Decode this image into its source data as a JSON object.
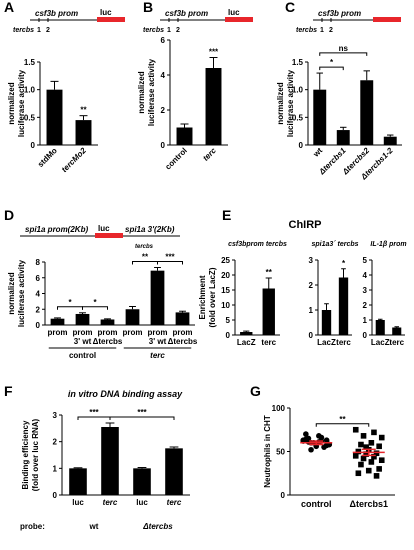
{
  "chart_data": [
    {
      "type": "bar",
      "panel": "A",
      "ylabel": [
        "normalized",
        "luciferase activity"
      ],
      "schematic": {
        "promoter": "csf3b prom",
        "reporter": "luc",
        "sites_label": "tercbs",
        "sites": [
          "1",
          "2"
        ],
        "reporter_color": "#e8262b"
      },
      "categories": [
        "stdMo",
        "tercMo2"
      ],
      "values": [
        1.0,
        0.45
      ],
      "errors": [
        0.15,
        0.08
      ],
      "color": "#000000",
      "ylim": [
        0,
        1.5
      ],
      "yticks": [
        0,
        0.5,
        {
          "value": 1,
          "label": "1.0"
        },
        1.5
      ],
      "annotations": [
        {
          "text": "**",
          "between": [
            1,
            1
          ]
        }
      ]
    },
    {
      "type": "bar",
      "panel": "B",
      "ylabel": [
        "normalized",
        "luciferase activity"
      ],
      "schematic": {
        "promoter": "csf3b prom",
        "reporter": "luc",
        "sites_label": "tercbs",
        "sites": [
          "1",
          "2"
        ],
        "reporter_color": "#e8262b"
      },
      "categories": [
        "control",
        "terc"
      ],
      "values": [
        1.0,
        4.4
      ],
      "errors": [
        0.2,
        0.6
      ],
      "color": "#000000",
      "ylim": [
        0,
        6
      ],
      "yticks": [
        0,
        2,
        4,
        6
      ],
      "annotations": [
        {
          "text": "***",
          "between": [
            1,
            1
          ]
        }
      ]
    },
    {
      "type": "bar",
      "panel": "C",
      "ylabel": [
        "normalized",
        "luciferase activity"
      ],
      "schematic": {
        "promoter": "csf3b prom",
        "sites_label": "tercbs",
        "sites": [
          "1",
          "2"
        ],
        "reporter_color": "#e8262b"
      },
      "categories": [
        "wt",
        "Δtercbs1",
        "Δtercbs2",
        "Δtercbs1-2"
      ],
      "values": [
        1.0,
        0.27,
        1.17,
        0.15
      ],
      "errors": [
        0.3,
        0.05,
        0.17,
        0.03
      ],
      "color": "#000000",
      "ylim": [
        0,
        1.5
      ],
      "yticks": [
        0,
        0.5,
        {
          "value": 1,
          "label": "1.0"
        },
        1.5
      ],
      "annotations": [
        {
          "text": "*",
          "between": [
            0,
            1
          ]
        },
        {
          "text": "ns",
          "between": [
            0,
            2
          ]
        }
      ]
    },
    {
      "type": "bar",
      "panel": "D",
      "ylabel": [
        "normalized",
        "luciferase activity"
      ],
      "schematic": {
        "promoter": "spi1a prom(2Kb)",
        "reporter": "luc",
        "utr": "spi1a 3'(2Kb)",
        "sites_label": "tercbs",
        "reporter_color": "#e8262b"
      },
      "categories": [
        "prom",
        "prom\n3' wt",
        "prom\nΔtercbs",
        "prom",
        "prom\n3' wt",
        "prom\nΔtercbs"
      ],
      "groups": [
        "control",
        "terc"
      ],
      "values": [
        0.8,
        1.4,
        0.7,
        2.0,
        6.9,
        1.6
      ],
      "errors": [
        0.1,
        0.15,
        0.08,
        0.35,
        0.4,
        0.15
      ],
      "color": "#000000",
      "ylim": [
        0,
        8
      ],
      "yticks": [
        0,
        2,
        4,
        6,
        8
      ],
      "annotations": [
        {
          "text": "*",
          "between": [
            0,
            1
          ]
        },
        {
          "text": "*",
          "between": [
            1,
            2
          ]
        },
        {
          "text": "**",
          "between": [
            3,
            4
          ]
        },
        {
          "text": "***",
          "between": [
            4,
            5
          ]
        }
      ]
    },
    {
      "type": "bar",
      "panel": "E",
      "title": "ChIRP",
      "subtitle": "csf3bprom tercbs",
      "ylabel": [
        "Enrichment",
        "(fold over LacZ)"
      ],
      "categories": [
        "LacZ",
        "terc"
      ],
      "values": [
        1.0,
        15.5
      ],
      "errors": [
        0.3,
        3.5
      ],
      "color": "#000000",
      "ylim": [
        0,
        25
      ],
      "yticks": [
        0,
        5,
        10,
        15,
        20,
        25
      ],
      "annotations": [
        {
          "text": "**",
          "between": [
            1,
            1
          ]
        }
      ]
    },
    {
      "type": "bar",
      "subtitle": "spi1a3´ tercbs",
      "categories": [
        "LacZ",
        "terc"
      ],
      "values": [
        1.0,
        2.3
      ],
      "errors": [
        0.25,
        0.35
      ],
      "color": "#000000",
      "ylim": [
        0,
        3
      ],
      "yticks": [
        0,
        1,
        2,
        3
      ],
      "annotations": [
        {
          "text": "*",
          "between": [
            1,
            1
          ]
        }
      ]
    },
    {
      "type": "bar",
      "subtitle": "IL-1β prom",
      "categories": [
        "LacZ",
        "terc"
      ],
      "values": [
        1.0,
        0.5
      ],
      "errors": [
        0.05,
        0.05
      ],
      "color": "#000000",
      "ylim": [
        0,
        5
      ],
      "yticks": [
        0,
        1,
        2,
        3,
        4,
        5
      ]
    },
    {
      "type": "bar",
      "panel": "F",
      "title": "in vitro DNA binding assay",
      "ylabel": [
        "Binding efficiency",
        "(fold over luc RNA)"
      ],
      "categories": [
        "luc",
        "terc",
        "luc",
        "terc"
      ],
      "groups": [
        "wt",
        "Δtercbs"
      ],
      "group_prefix": "probe:",
      "values": [
        1.0,
        2.55,
        1.0,
        1.75
      ],
      "errors": [
        0.02,
        0.15,
        0.03,
        0.05
      ],
      "color": "#000000",
      "ylim": [
        0,
        3
      ],
      "yticks": [
        0,
        1,
        2,
        3
      ],
      "annotations": [
        {
          "text": "***",
          "between": [
            0,
            1
          ]
        },
        {
          "text": "***",
          "between": [
            1,
            3
          ]
        }
      ]
    },
    {
      "type": "scatter",
      "panel": "G",
      "ylabel": [
        "Neutrophils in CHT"
      ],
      "series": [
        {
          "name": "control",
          "values": [
            63,
            62,
            60,
            58,
            61,
            65,
            57,
            59,
            64,
            55,
            60,
            62,
            66,
            52,
            58,
            68,
            61,
            63,
            56,
            70
          ]
        },
        {
          "name": "Δtercbs1",
          "values": [
            75,
            72,
            68,
            66,
            60,
            58,
            56,
            52,
            50,
            48,
            47,
            45,
            44,
            42,
            40,
            38,
            35,
            30,
            28,
            25,
            22,
            55
          ]
        }
      ],
      "means": [
        60,
        49
      ],
      "errors": [
        2,
        3.5
      ],
      "color": "#000000",
      "mean_color": "#e8262b",
      "ylim": [
        0,
        100
      ],
      "yticks": [
        0,
        50,
        100
      ],
      "annotations": [
        {
          "text": "**",
          "between": [
            0,
            1
          ]
        }
      ]
    }
  ]
}
